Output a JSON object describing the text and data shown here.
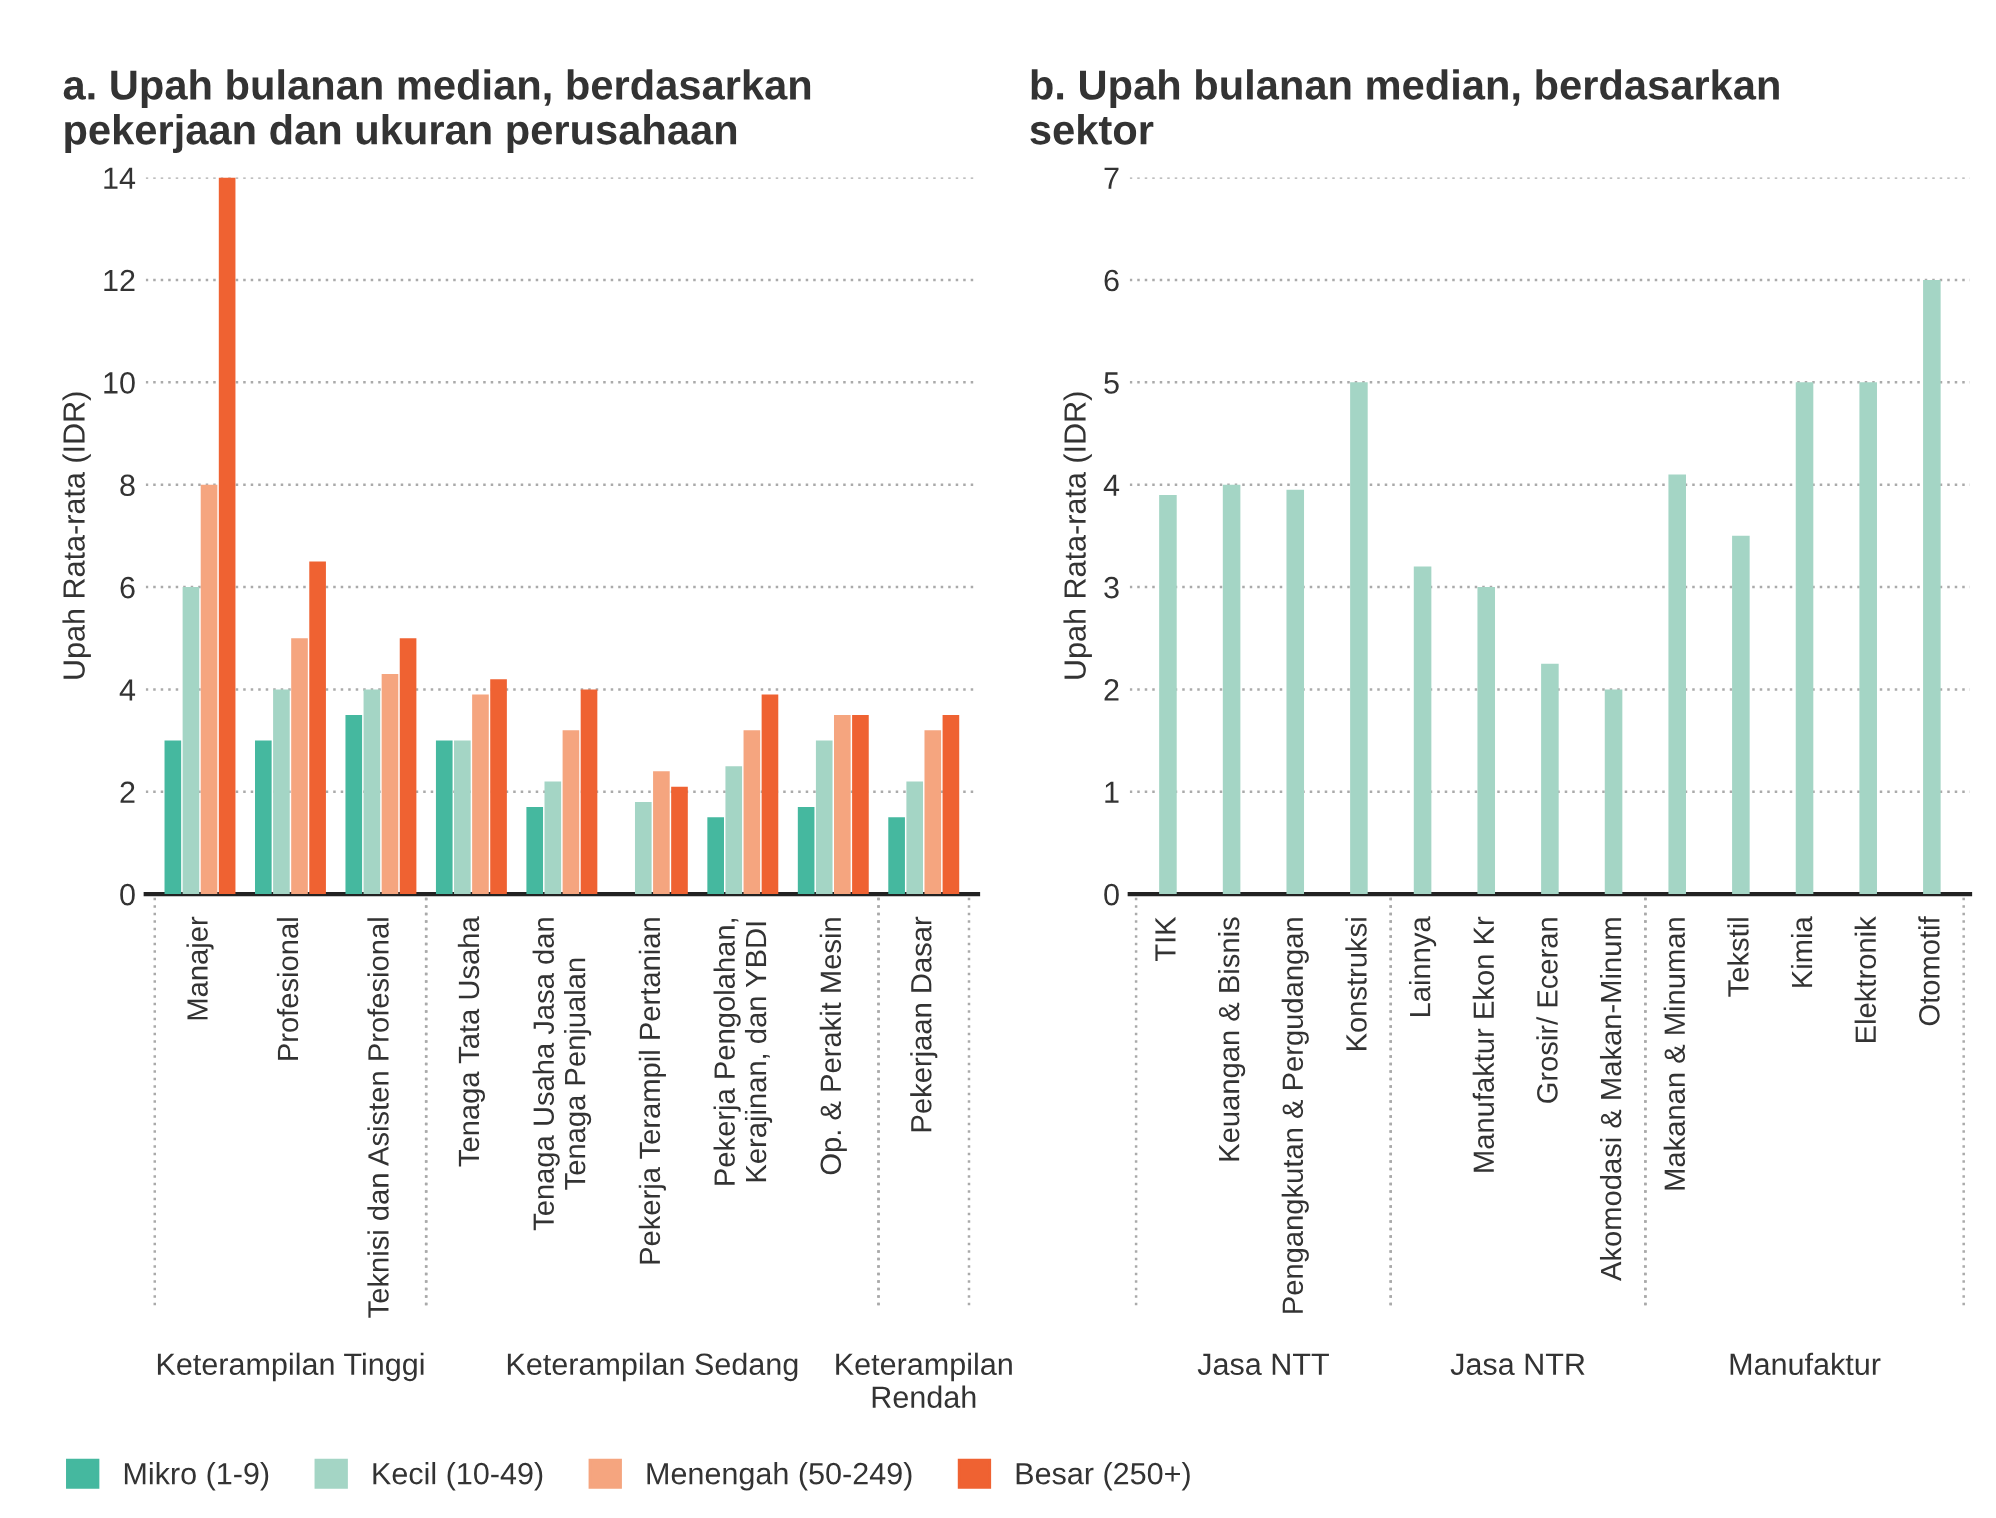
{
  "chart_data": [
    {
      "type": "bar",
      "title": "a. Upah bulanan median, berdasarkan\npekerjaan dan ukuran perusahaan",
      "ylabel": "Upah Rata-rata (IDR)",
      "categories": [
        "Manajer",
        "Profesional",
        "Teknisi dan Asisten Profesional",
        "Tenaga Tata Usaha",
        "Tenaga Usaha Jasa dan\nTenaga Penjualan",
        "Pekerja Terampil Pertanian",
        "Pekerja Pengolahan,\nKerajinan, dan YBDI",
        "Op. & Perakit Mesin",
        "Pekerjaan Dasar"
      ],
      "series": [
        {
          "name": "Mikro (1-9)",
          "color": "#45b89f",
          "values": [
            3,
            3,
            3.5,
            3,
            1.7,
            null,
            1.5,
            1.7,
            1.5
          ]
        },
        {
          "name": "Kecil (10-49)",
          "color": "#a4d5c5",
          "values": [
            6,
            4,
            4,
            3,
            2.2,
            1.8,
            2.5,
            3,
            2.2
          ]
        },
        {
          "name": "Menengah (50-249)",
          "color": "#f5a57f",
          "values": [
            8,
            5,
            4.3,
            3.9,
            3.2,
            2.4,
            3.2,
            3.5,
            3.2
          ]
        },
        {
          "name": "Besar (250+)",
          "color": "#ef6232",
          "values": [
            14,
            6.5,
            5,
            4.2,
            4,
            2.1,
            3.9,
            3.5,
            3.5
          ]
        }
      ],
      "ylim": [
        0,
        14
      ],
      "yticks": [
        0,
        2,
        4,
        6,
        8,
        10,
        12,
        14
      ],
      "grid": "y",
      "legend": "bottom",
      "annotations": [
        "Keterampilan Tinggi",
        "Keterampilan Sedang",
        "Keterampilan\nRendah"
      ]
    },
    {
      "type": "bar",
      "title": "b. Upah bulanan median, berdasarkan\nsektor",
      "ylabel": "Upah Rata-rata (IDR)",
      "categories": [
        "TIK",
        "Keuangan & Bisnis",
        "Pengangkutan & Pergudangan",
        "Konstruksi",
        "Lainnya",
        "Manufaktur Ekon Kr",
        "Grosir/ Eceran",
        "Akomodasi & Makan-Minum",
        "Makanan & Minuman",
        "Tekstil",
        "Kimia",
        "Elektronik",
        "Otomotif"
      ],
      "series": [
        {
          "color": "#a4d5c5",
          "values": [
            3.9,
            4,
            3.95,
            5,
            3.2,
            3,
            2.25,
            2,
            4.1,
            3.5,
            5,
            5,
            6
          ]
        }
      ],
      "ylim": [
        0,
        7
      ],
      "yticks": [
        0,
        1,
        2,
        3,
        4,
        5,
        6,
        7
      ],
      "grid": "y",
      "annotations": [
        "Jasa NTT",
        "Jasa NTR",
        "Manufaktur"
      ]
    }
  ]
}
